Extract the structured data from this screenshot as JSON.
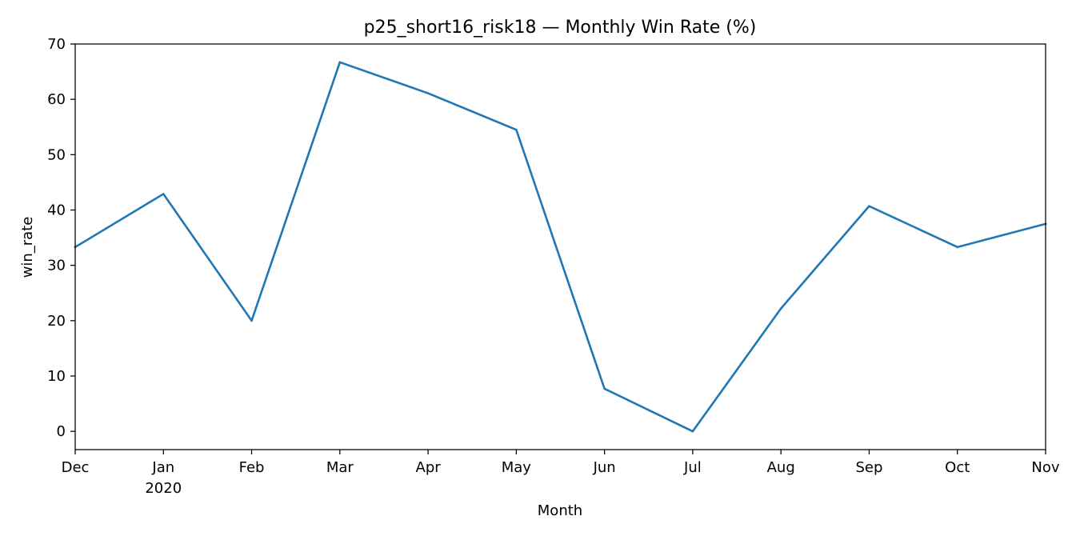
{
  "chart_data": {
    "type": "line",
    "title": "p25_short16_risk18 — Monthly Win Rate (%)",
    "xlabel": "Month",
    "ylabel": "win_rate",
    "x": [
      "2019-12",
      "2020-01",
      "2020-02",
      "2020-03",
      "2020-04",
      "2020-05",
      "2020-06",
      "2020-07",
      "2020-08",
      "2020-09",
      "2020-10",
      "2020-11"
    ],
    "x_tick_labels": [
      "Dec",
      "Jan",
      "Feb",
      "Mar",
      "Apr",
      "May",
      "Jun",
      "Jul",
      "Aug",
      "Sep",
      "Oct",
      "Nov"
    ],
    "x_tick_sublabels": [
      "",
      "2020",
      "",
      "",
      "",
      "",
      "",
      "",
      "",
      "",
      "",
      ""
    ],
    "series": [
      {
        "values": [
          33.3,
          42.9,
          20.0,
          66.7,
          61.1,
          54.5,
          7.7,
          0.0,
          22.2,
          40.7,
          33.3,
          37.5
        ],
        "color": "#1f77b4"
      }
    ],
    "ylim": [
      -3.3,
      70
    ],
    "y_ticks": [
      0,
      10,
      20,
      30,
      40,
      50,
      60,
      70
    ],
    "grid": false,
    "legend": false
  }
}
